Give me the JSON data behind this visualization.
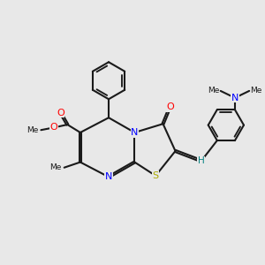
{
  "bg_color": "#e8e8e8",
  "bond_color": "#1a1a1a",
  "bond_width": 1.5,
  "atom_colors": {
    "N": "#0000ff",
    "O": "#ff0000",
    "S": "#aaaa00",
    "H": "#008080",
    "C": "#1a1a1a"
  },
  "xlim": [
    0,
    10.5
  ],
  "ylim": [
    0,
    10.5
  ]
}
